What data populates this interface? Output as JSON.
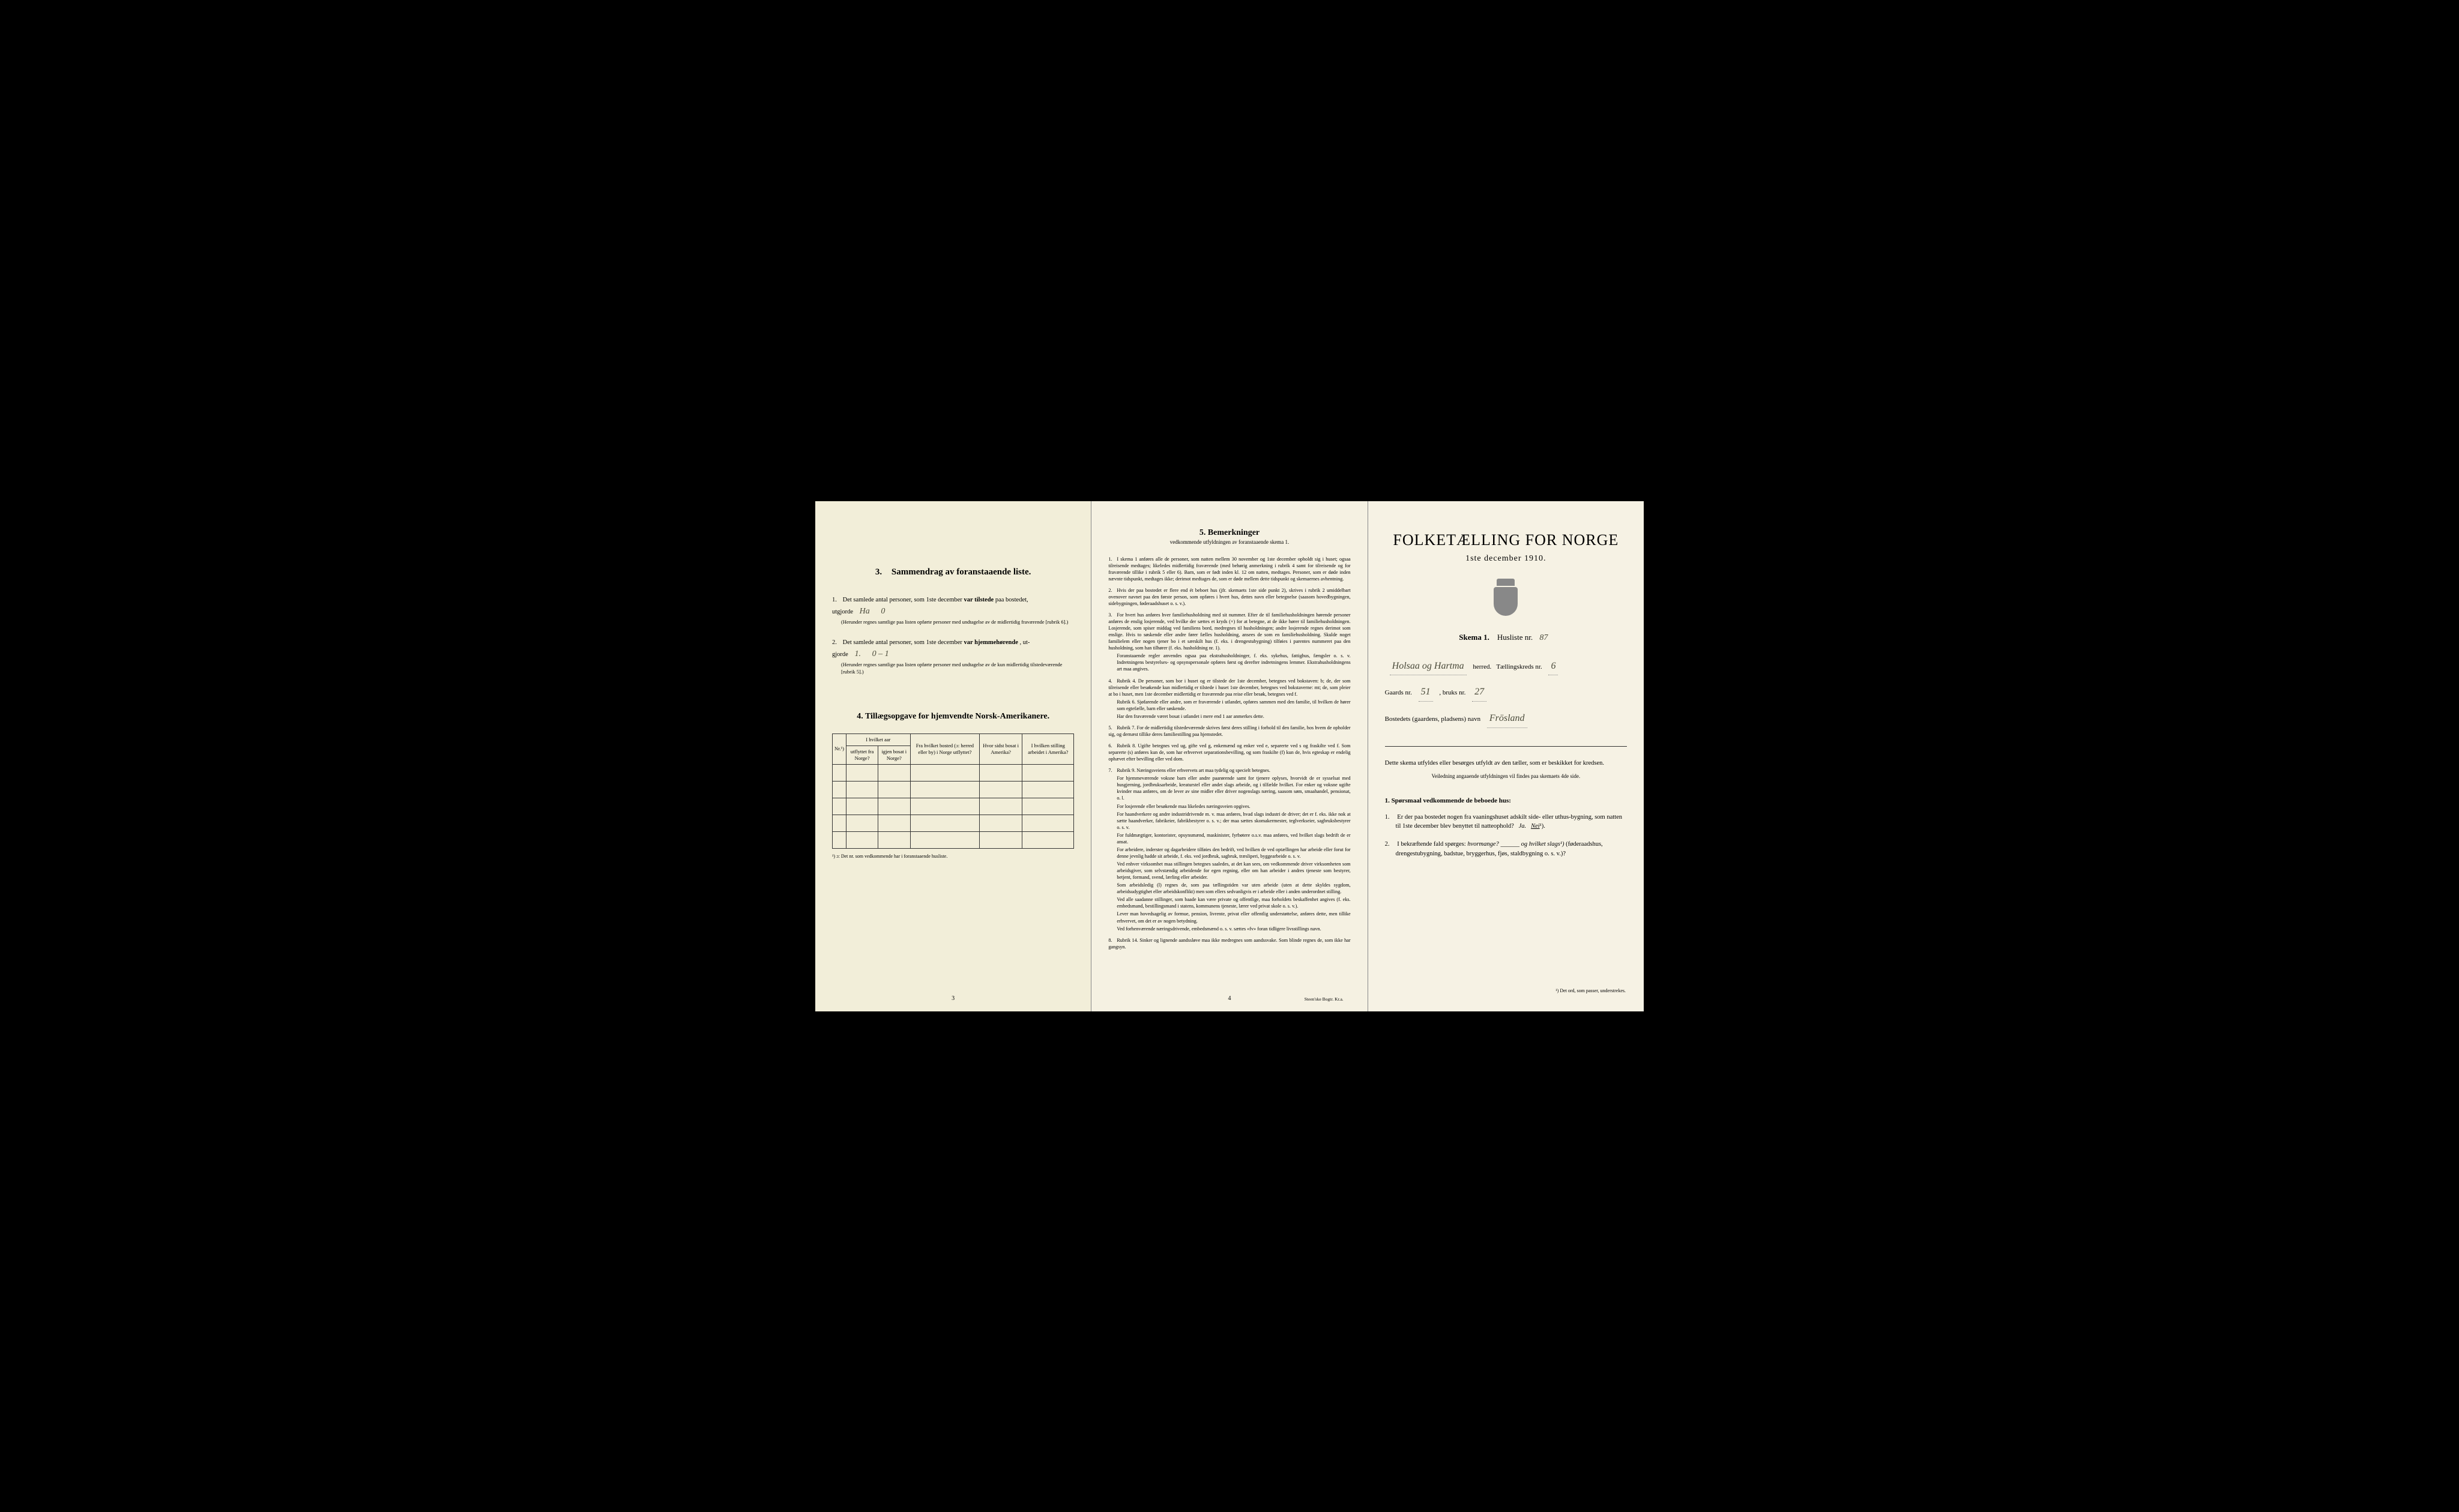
{
  "page1": {
    "section3": {
      "number": "3.",
      "title": "Sammendrag av foranstaaende liste.",
      "item1": {
        "num": "1.",
        "text_a": "Det samlede antal personer, som 1ste december",
        "bold": "var tilstede",
        "text_b": "paa bostedet,",
        "text_c": "utgjorde",
        "hw1": "Ha",
        "hw2": "0",
        "fine": "(Herunder regnes samtlige paa listen opførte personer med undtagelse av de midlertidig fraværende [rubrik 6].)"
      },
      "item2": {
        "num": "2.",
        "text_a": "Det samlede antal personer, som 1ste december",
        "bold": "var hjemmehørende",
        "text_b": ", ut-",
        "text_c": "gjorde",
        "hw1": "1.",
        "hw2": "0 – 1",
        "fine": "(Herunder regnes samtlige paa listen opførte personer med undtagelse av de kun midlertidig tilstedeværende [rubrik 5].)"
      }
    },
    "section4": {
      "number": "4.",
      "title": "Tillægsopgave for hjemvendte Norsk-Amerikanere.",
      "headers": {
        "col1": "Nr.¹)",
        "col2a": "I hvilket aar",
        "col2b": "utflyttet fra Norge?",
        "col2c": "igjen bosat i Norge?",
        "col3": "Fra hvilket bosted (ɔ: herred eller by) i Norge utflyttet?",
        "col4": "Hvor sidst bosat i Amerika?",
        "col5": "I hvilken stilling arbeidet i Amerika?"
      },
      "footnote": "¹) ɔ: Det nr. som vedkommende har i foranstaaende husliste."
    },
    "page_num": "3"
  },
  "page2": {
    "title_num": "5.",
    "title": "Bemerkninger",
    "subtitle": "vedkommende utfyldningen av foranstaaende skema 1.",
    "remarks": [
      {
        "num": "1.",
        "text": "I skema 1 anføres alle de personer, som natten mellem 30 november og 1ste december opholdt sig i huset; ogsaa tilreisende medtages; likeledes midlertidig fraværende (med behørig anmerkning i rubrik 4 samt for tilreisende og for fraværende tillike i rubrik 5 eller 6). Barn, som er født inden kl. 12 om natten, medtages. Personer, som er døde inden nævnte tidspunkt, medtages ikke; derimot medtages de, som er døde mellem dette tidspunkt og skemaernes avhentning."
      },
      {
        "num": "2.",
        "text": "Hvis der paa bostedet er flere end ét beboet hus (jfr. skemaets 1ste side punkt 2), skrives i rubrik 2 umiddelbart ovenover navnet paa den første person, som opføres i hvert hus, dettes navn eller betegnelse (saasom hovedbygningen, sidebygningen, føderaadshuset o. s. v.)."
      },
      {
        "num": "3.",
        "text": "For hvert hus anføres hver familiehusholdning med sit nummer. Efter de til familiehusholdningen hørende personer anføres de enslig losjerende, ved hvilke der sættes et kryds (×) for at betegne, at de ikke hører til familiehusholdningen. Losjerende, som spiser middag ved familiens bord, medregnes til husholdningen; andre losjerende regnes derimot som enslige. Hvis to søskende eller andre fører fælles husholdning, ansees de som en familiehusholdning. Skulde noget familielem eller nogen tjener bo i et særskilt hus (f. eks. i drengestubygning) tilføies i parentes nummeret paa den husholdning, som han tilhører (f. eks. husholdning nr. 1).",
        "extra": "Foranstaaende regler anvendes ogsaa paa ekstrahusholdninger, f. eks. sykehus, fattighus, fængsler o. s. v. Indretningens bestyrelses- og opsynspersonale opføres først og derefter indretningens lemmer. Ekstrahusholdningens art maa angives."
      },
      {
        "num": "4.",
        "text": "Rubrik 4. De personer, som bor i huset og er tilstede der 1ste december, betegnes ved bokstaven: b; de, der som tilreisende eller besøkende kun midlertidig er tilstede i huset 1ste december, betegnes ved bokstaverne: mt; de, som pleier at bo i huset, men 1ste december midlertidig er fraværende paa reise eller besøk, betegnes ved f.",
        "extra": "Rubrik 6. Sjøfarende eller andre, som er fraværende i utlandet, opføres sammen med den familie, til hvilken de hører som egtefælle, barn eller søskende.",
        "extra2": "Har den fraværende været bosat i utlandet i mere end 1 aar anmerkes dette."
      },
      {
        "num": "5.",
        "text": "Rubrik 7. For de midlertidig tilstedeværende skrives først deres stilling i forhold til den familie, hos hvem de opholder sig, og dernæst tillike deres familiestilling paa hjemstedet."
      },
      {
        "num": "6.",
        "text": "Rubrik 8. Ugifte betegnes ved ug, gifte ved g, enkemænd og enker ved e, separerte ved s og fraskilte ved f. Som separerte (s) anføres kun de, som har erhvervet separationsbevilling, og som fraskilte (f) kun de, hvis egteskap er endelig ophævet efter bevilling eller ved dom."
      },
      {
        "num": "7.",
        "text": "Rubrik 9. Næringsveiens eller erhvervets art maa tydelig og specielt betegnes.",
        "extra": "For hjemmeværende voksne barn eller andre paarørende samt for tjenere oplyses, hvorvidt de er sysselsat med husgjerning, jordbruksarbeide, kreaturstel eller andet slags arbeide, og i tilfælde hvilket. For enker og voksne ugifte kvinder maa anføres, om de lever av sine midler eller driver nogenslags næring, saasom søm, smaahandel, pensionat, o. l.",
        "extra2": "For losjerende eller besøkende maa likeledes næringsveien opgives.",
        "extra3": "For haandverkere og andre industridrivende m. v. maa anføres, hvad slags industri de driver; det er f. eks. ikke nok at sætte haandverker, fabrikeier, fabrikbestyrer o. s. v.; der maa sættes skomakermester, teglverkseier, sagbruksbestyrer o. s. v.",
        "extra4": "For fuldmægtiger, kontorister, opsynsmænd, maskinister, fyrbøtere o.s.v. maa anføres, ved hvilket slags bedrift de er ansat.",
        "extra5": "For arbeidere, inderster og dagarbeidere tilføies den bedrift, ved hvilken de ved optællingen har arbeide eller forut for denne jevnlig hadde sit arbeide, f. eks. ved jordbruk, sagbruk, træsliperi, byggearbeide o. s. v.",
        "extra6": "Ved enhver virksomhet maa stillingen betegnes saaledes, at det kan sees, om vedkommende driver virksomheten som arbeidsgiver, som selvstændig arbeidende for egen regning, eller om han arbeider i andres tjeneste som bestyrer, betjent, formand, svend, lærling eller arbeider.",
        "extra7": "Som arbeidsledig (l) regnes de, som paa tællingstiden var uten arbeide (uten at dette skyldes sygdom, arbeidsudygtighet eller arbeidskonflikt) men som ellers sedvanligvis er i arbeide eller i anden underordnet stilling.",
        "extra8": "Ved alle saadanne stillinger, som baade kan være private og offentlige, maa forholdets beskaffenhet angives (f. eks. embedsmand, bestillingsmand i statens, kommunens tjeneste, lærer ved privat skole o. s. v.).",
        "extra9": "Lever man hovedsagelig av formue, pension, livrente, privat eller offentlig understøttelse, anføres dette, men tillike erhvervet, om det er av nogen betydning.",
        "extra10": "Ved forhenværende næringsdrivende, embedsmænd o. s. v. sættes «fv» foran tidligere livsstillings navn."
      },
      {
        "num": "8.",
        "text": "Rubrik 14. Sinker og lignende aandssløve maa ikke medregnes som aandssvake. Som blinde regnes de, som ikke har gangsyn."
      }
    ],
    "page_num": "4",
    "printer": "Steen'ske Bogtr. Kr.a."
  },
  "page3": {
    "main_title": "FOLKETÆLLING FOR NORGE",
    "subtitle": "1ste december 1910.",
    "skema": "Skema 1.",
    "husliste_label": "Husliste nr.",
    "husliste_nr": "87",
    "herred_hw": "Holsaa og Hartma",
    "herred_label": "herred.",
    "kreds_label": "Tællingskreds nr.",
    "kreds_nr": "6",
    "gaards_label": "Gaards nr.",
    "gaards_nr": "51",
    "bruks_label": ", bruks nr.",
    "bruks_nr": "27",
    "bosted_label": "Bostedets (gaardens, pladsens) navn",
    "bosted_hw": "Frösland",
    "instruction": "Dette skema utfyldes eller besørges utfyldt av den tæller, som er beskikket for kredsen.",
    "instruction_sub": "Veiledning angaaende utfyldningen vil findes paa skemaets 4de side.",
    "q_title_num": "1.",
    "q_title": "Spørsmaal vedkommende de beboede hus:",
    "q1": {
      "num": "1.",
      "text": "Er der paa bostedet nogen fra vaaningshuset adskilt side- eller uthus-bygning, som natten til 1ste december blev benyttet til natteophold?",
      "ja": "Ja.",
      "nei": "Nei"
    },
    "q2": {
      "num": "2.",
      "text_a": "I bekræftende fald spørges:",
      "hvormange": "hvormange?",
      "text_b": "og hvilket slags¹)",
      "text_c": "(føderaadshus, drengestubygning, badstue, bryggerhus, fjøs, staldbygning o. s. v.)?"
    },
    "footnote": "¹) Det ord, som passer, understrekes."
  }
}
